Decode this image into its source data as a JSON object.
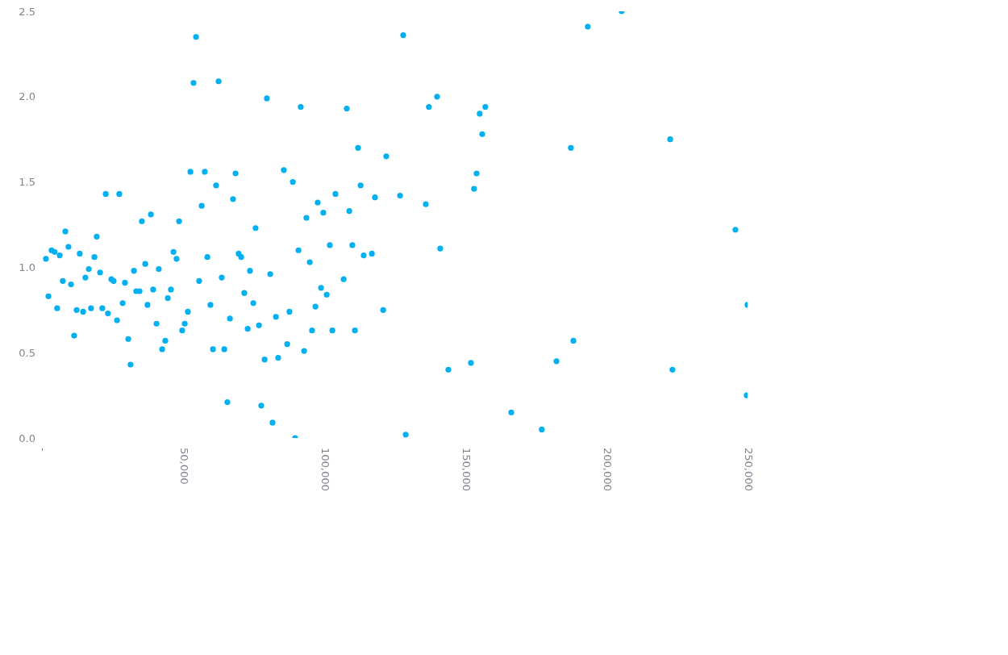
{
  "chart_data": {
    "type": "scatter",
    "marker": "circle",
    "grid": false,
    "legend": false,
    "xlim": [
      0,
      250000
    ],
    "xticks": [
      {
        "value": 0,
        "label": "-"
      },
      {
        "value": 50000,
        "label": "50,000"
      },
      {
        "value": 100000,
        "label": "100,000"
      },
      {
        "value": 150000,
        "label": "150,000"
      },
      {
        "value": 200000,
        "label": "200,000"
      },
      {
        "value": 250000,
        "label": "250,000"
      }
    ],
    "ylim": [
      0,
      2.5
    ],
    "yticks": [
      {
        "value": 0,
        "label": "0.0"
      },
      {
        "value": 0.5,
        "label": "0.5"
      },
      {
        "value": 1,
        "label": "1.0"
      },
      {
        "value": 1.5,
        "label": "1.5"
      },
      {
        "value": 2,
        "label": "2.0"
      },
      {
        "value": 2.5,
        "label": "2.5"
      }
    ],
    "series": [
      {
        "color": "#00b0f0",
        "x": [
          1400,
          2300,
          3400,
          4500,
          5400,
          6300,
          7400,
          8300,
          9400,
          10300,
          11400,
          12300,
          13400,
          14600,
          15400,
          16600,
          17400,
          18600,
          19400,
          20600,
          21400,
          22600,
          23400,
          24600,
          25400,
          26600,
          27400,
          28600,
          29400,
          30600,
          31400,
          32600,
          33400,
          34600,
          35400,
          36600,
          37400,
          38600,
          39400,
          40600,
          41400,
          42600,
          43700,
          44600,
          45700,
          46600,
          47700,
          48600,
          49700,
          50600,
          51700,
          52600,
          53700,
          54600,
          55700,
          56600,
          57700,
          58600,
          59700,
          60600,
          61700,
          62600,
          63700,
          64600,
          65700,
          66600,
          67700,
          68600,
          69700,
          70600,
          71700,
          72900,
          73700,
          74900,
          75700,
          76900,
          77700,
          78900,
          79700,
          80900,
          81700,
          82900,
          83700,
          85700,
          86900,
          87700,
          88900,
          89700,
          90900,
          91700,
          92900,
          93700,
          94900,
          95700,
          96900,
          97700,
          98900,
          99700,
          100900,
          102000,
          102900,
          104000,
          106900,
          108000,
          108900,
          110000,
          110900,
          112000,
          112900,
          114000,
          116900,
          118000,
          120900,
          122000,
          126900,
          128000,
          128900,
          136000,
          137100,
          140000,
          141100,
          144000,
          152000,
          153100,
          154000,
          155100,
          156000,
          157100,
          166300,
          177100,
          182300,
          187400,
          188300,
          193400,
          205400,
          222600,
          223400,
          245700,
          249700,
          250000
        ],
        "values": [
          1.05,
          0.83,
          1.1,
          1.09,
          0.76,
          1.07,
          0.92,
          1.21,
          1.12,
          0.9,
          0.6,
          0.75,
          1.08,
          0.74,
          0.94,
          0.99,
          0.76,
          1.06,
          1.18,
          0.97,
          0.76,
          1.43,
          0.73,
          0.93,
          0.92,
          0.69,
          1.43,
          0.79,
          0.91,
          0.58,
          0.43,
          0.98,
          0.86,
          0.86,
          1.27,
          1.02,
          0.78,
          1.31,
          0.87,
          0.67,
          0.99,
          0.52,
          0.57,
          0.82,
          0.87,
          1.09,
          1.05,
          1.27,
          0.63,
          0.67,
          0.74,
          1.56,
          2.08,
          2.35,
          0.92,
          1.36,
          1.56,
          1.06,
          0.78,
          0.52,
          1.48,
          2.09,
          0.94,
          0.52,
          0.21,
          0.7,
          1.4,
          1.55,
          1.08,
          1.06,
          0.85,
          0.64,
          0.98,
          0.79,
          1.23,
          0.66,
          0.19,
          0.46,
          1.99,
          0.96,
          0.09,
          0.71,
          0.47,
          1.57,
          0.55,
          0.74,
          1.5,
          0.0,
          1.1,
          1.94,
          0.51,
          1.29,
          1.03,
          0.63,
          0.77,
          1.38,
          0.88,
          1.32,
          0.84,
          1.13,
          0.63,
          1.43,
          0.93,
          1.93,
          1.33,
          1.13,
          0.63,
          1.7,
          1.48,
          1.07,
          1.08,
          1.41,
          0.75,
          1.65,
          1.42,
          2.36,
          0.02,
          1.37,
          1.94,
          2.0,
          1.11,
          0.4,
          0.44,
          1.46,
          1.55,
          1.9,
          1.78,
          1.94,
          0.15,
          0.05,
          0.45,
          1.7,
          0.57,
          2.41,
          2.5,
          1.75,
          0.4,
          1.22,
          0.25,
          0.78
        ]
      }
    ]
  }
}
